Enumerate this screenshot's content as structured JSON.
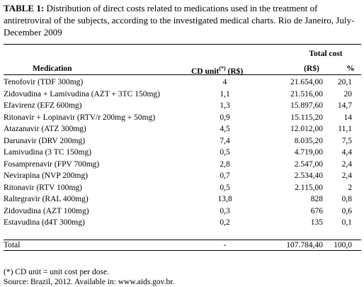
{
  "title": {
    "label": "TABLE 1:",
    "text": "Distribution of direct costs related to medications used in the treatment of antiretroviral of the subjects, according to the investigated medical charts. Rio de Janeiro, July-December 2009"
  },
  "table": {
    "group_header": "Total cost",
    "header": {
      "medication": "Medication",
      "cd_unit": "CD unit",
      "cd_unit_mark": "(*)",
      "cd_unit_currency": "(R$)",
      "total": "(R$)",
      "percent": "%"
    },
    "rows": [
      [
        "Tenofovir (TDF 300mg)",
        "4",
        "21.654,00",
        "20,1"
      ],
      [
        "Zidovudina + Lamivudina (AZT + 3TC 150mg)",
        "1,1",
        "21.516,00",
        "20"
      ],
      [
        "Efavirenz (EFZ 600mg)",
        "1,3",
        "15.897,60",
        "14,7"
      ],
      [
        "Ritonavir + Lopinavir (RTV/r 200mg + 50mg)",
        "0,9",
        "15.115,20",
        "14"
      ],
      [
        "Atazanavir (ATZ 300mg)",
        "4,5",
        "12.012,00",
        "11,1"
      ],
      [
        "Darunavir (DRV 200mg)",
        "7,4",
        "8.035,20",
        "7,5"
      ],
      [
        "Lamivudina (3 TC 150mg)",
        "0,5",
        "4.719,00",
        "4,4"
      ],
      [
        "Fosamprenavir (FPV 700mg)",
        "2,8",
        "2.547,00",
        "2,4"
      ],
      [
        "Nevirapina (NVP 200mg)",
        "0,7",
        "2.534,40",
        "2,4"
      ],
      [
        "Ritonavir (RTV 100mg)",
        "0,5",
        "2.115,00",
        "2"
      ],
      [
        "Raltegravir (RAL 400mg)",
        "13,8",
        "828",
        "0,8"
      ],
      [
        "Zidovudina (AZT 100mg)",
        "0,3",
        "676",
        "0,6"
      ],
      [
        "Estavudina (d4T 300mg)",
        "0,2",
        "135",
        "0,1"
      ]
    ],
    "total_row": [
      "Total",
      "-",
      "107.784,40",
      "100,0"
    ]
  },
  "footnotes": [
    "(*) CD unit = unit cost per dose.",
    "Source: Brazil, 2012. Available in: www.aids.gov.br."
  ]
}
